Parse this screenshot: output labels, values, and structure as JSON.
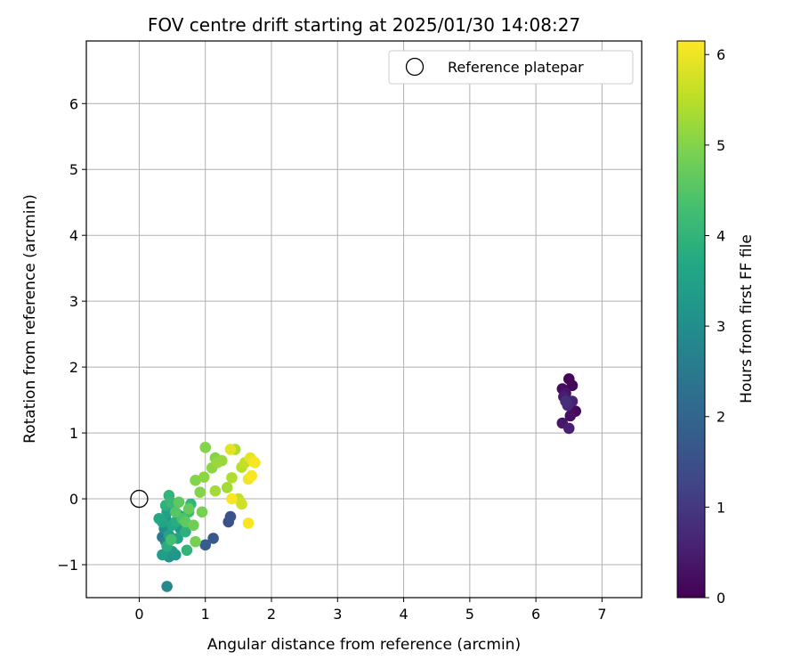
{
  "chart_data": {
    "type": "scatter",
    "title": "FOV centre drift starting at 2025/01/30 14:08:27",
    "xlabel": "Angular distance from reference (arcmin)",
    "ylabel": "Rotation from reference (arcmin)",
    "xlim": [
      -0.8,
      7.6
    ],
    "ylim": [
      -1.5,
      6.95
    ],
    "xticks": [
      0,
      1,
      2,
      3,
      4,
      5,
      6,
      7
    ],
    "yticks": [
      -1,
      0,
      1,
      2,
      3,
      4,
      5,
      6
    ],
    "grid": true,
    "legend": {
      "position": "top-right",
      "entries": [
        "Reference platepar"
      ]
    },
    "reference_point": {
      "name": "Reference platepar",
      "x": 0,
      "y": 0,
      "marker": "open-circle"
    },
    "colorbar": {
      "label": "Hours from first FF file",
      "min": 0,
      "max": 6.15,
      "ticks": [
        0,
        1,
        2,
        3,
        4,
        5,
        6
      ],
      "colormap": "viridis"
    },
    "points": [
      {
        "x": 6.5,
        "y": 1.82,
        "h": 0.05
      },
      {
        "x": 6.55,
        "y": 1.72,
        "h": 0.1
      },
      {
        "x": 6.4,
        "y": 1.67,
        "h": 0.2
      },
      {
        "x": 6.45,
        "y": 1.6,
        "h": 0.35
      },
      {
        "x": 6.42,
        "y": 1.55,
        "h": 0.5
      },
      {
        "x": 6.55,
        "y": 1.48,
        "h": 0.6
      },
      {
        "x": 6.48,
        "y": 1.42,
        "h": 0.7
      },
      {
        "x": 6.6,
        "y": 1.33,
        "h": 0.15
      },
      {
        "x": 6.52,
        "y": 1.26,
        "h": 0.25
      },
      {
        "x": 6.4,
        "y": 1.15,
        "h": 0.4
      },
      {
        "x": 6.5,
        "y": 1.07,
        "h": 0.55
      },
      {
        "x": 6.45,
        "y": 1.48,
        "h": 0.8
      },
      {
        "x": 1.35,
        "y": -0.35,
        "h": 1.5
      },
      {
        "x": 1.38,
        "y": -0.27,
        "h": 1.6
      },
      {
        "x": 1.12,
        "y": -0.6,
        "h": 1.7
      },
      {
        "x": 1.0,
        "y": -0.7,
        "h": 1.8
      },
      {
        "x": 0.42,
        "y": -1.33,
        "h": 2.9
      },
      {
        "x": 0.35,
        "y": -0.58,
        "h": 2.5
      },
      {
        "x": 0.4,
        "y": -0.65,
        "h": 2.7
      },
      {
        "x": 0.45,
        "y": -0.88,
        "h": 3.1
      },
      {
        "x": 0.55,
        "y": -0.85,
        "h": 3.2
      },
      {
        "x": 0.5,
        "y": -0.8,
        "h": 3.3
      },
      {
        "x": 0.35,
        "y": -0.85,
        "h": 3.4
      },
      {
        "x": 0.38,
        "y": -0.45,
        "h": 3.0
      },
      {
        "x": 0.4,
        "y": -0.3,
        "h": 3.2
      },
      {
        "x": 0.42,
        "y": -0.2,
        "h": 3.5
      },
      {
        "x": 0.35,
        "y": -0.35,
        "h": 3.6
      },
      {
        "x": 0.45,
        "y": -0.55,
        "h": 3.5
      },
      {
        "x": 0.5,
        "y": -0.4,
        "h": 3.7
      },
      {
        "x": 0.55,
        "y": -0.35,
        "h": 3.8
      },
      {
        "x": 0.52,
        "y": -0.15,
        "h": 3.6
      },
      {
        "x": 0.4,
        "y": -0.1,
        "h": 3.9
      },
      {
        "x": 0.45,
        "y": 0.05,
        "h": 4.0
      },
      {
        "x": 0.48,
        "y": -0.05,
        "h": 4.1
      },
      {
        "x": 0.6,
        "y": -0.25,
        "h": 3.4
      },
      {
        "x": 0.62,
        "y": -0.45,
        "h": 3.3
      },
      {
        "x": 0.58,
        "y": -0.6,
        "h": 3.6
      },
      {
        "x": 0.7,
        "y": -0.5,
        "h": 3.9
      },
      {
        "x": 0.72,
        "y": -0.78,
        "h": 4.0
      },
      {
        "x": 0.75,
        "y": -0.2,
        "h": 4.2
      },
      {
        "x": 0.78,
        "y": -0.08,
        "h": 4.0
      },
      {
        "x": 0.65,
        "y": -0.3,
        "h": 4.4
      },
      {
        "x": 0.55,
        "y": -0.2,
        "h": 4.5
      },
      {
        "x": 0.6,
        "y": -0.05,
        "h": 4.6
      },
      {
        "x": 0.7,
        "y": -0.35,
        "h": 4.6
      },
      {
        "x": 0.75,
        "y": -0.15,
        "h": 4.7
      },
      {
        "x": 0.82,
        "y": -0.4,
        "h": 4.8
      },
      {
        "x": 0.85,
        "y": -0.65,
        "h": 4.9
      },
      {
        "x": 0.48,
        "y": -0.62,
        "h": 4.3
      },
      {
        "x": 0.42,
        "y": -0.72,
        "h": 3.8
      },
      {
        "x": 0.3,
        "y": -0.3,
        "h": 3.7
      },
      {
        "x": 0.95,
        "y": -0.2,
        "h": 4.9
      },
      {
        "x": 0.92,
        "y": 0.1,
        "h": 5.0
      },
      {
        "x": 0.85,
        "y": 0.28,
        "h": 5.0
      },
      {
        "x": 0.98,
        "y": 0.33,
        "h": 5.1
      },
      {
        "x": 1.1,
        "y": 0.47,
        "h": 5.1
      },
      {
        "x": 1.15,
        "y": 0.62,
        "h": 5.0
      },
      {
        "x": 1.0,
        "y": 0.78,
        "h": 5.0
      },
      {
        "x": 1.18,
        "y": 0.55,
        "h": 5.2
      },
      {
        "x": 1.25,
        "y": 0.58,
        "h": 5.2
      },
      {
        "x": 1.15,
        "y": 0.12,
        "h": 5.3
      },
      {
        "x": 1.33,
        "y": 0.17,
        "h": 5.3
      },
      {
        "x": 1.4,
        "y": 0.32,
        "h": 5.4
      },
      {
        "x": 1.45,
        "y": 0.75,
        "h": 5.4
      },
      {
        "x": 1.55,
        "y": 0.48,
        "h": 5.5
      },
      {
        "x": 1.6,
        "y": 0.55,
        "h": 5.6
      },
      {
        "x": 1.5,
        "y": 0.0,
        "h": 5.6
      },
      {
        "x": 1.55,
        "y": -0.08,
        "h": 5.7
      },
      {
        "x": 1.38,
        "y": 0.75,
        "h": 5.9
      },
      {
        "x": 1.68,
        "y": 0.62,
        "h": 5.9
      },
      {
        "x": 1.72,
        "y": 0.57,
        "h": 6.0
      },
      {
        "x": 1.75,
        "y": 0.55,
        "h": 6.1
      },
      {
        "x": 1.65,
        "y": 0.3,
        "h": 6.0
      },
      {
        "x": 1.7,
        "y": 0.35,
        "h": 6.1
      },
      {
        "x": 1.65,
        "y": -0.37,
        "h": 6.1
      },
      {
        "x": 1.4,
        "y": 0.0,
        "h": 6.1
      }
    ]
  }
}
